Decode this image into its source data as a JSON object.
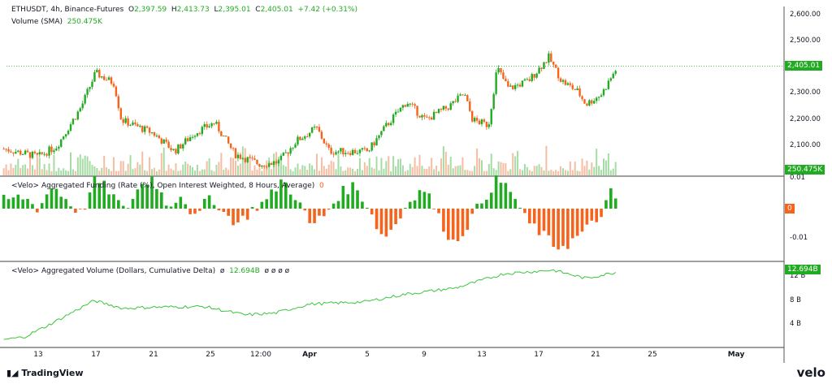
{
  "header": {
    "symbol": "ETHUSDT, 4h, Binance-Futures",
    "o_label": "O",
    "open": "2,397.59",
    "h_label": "H",
    "high": "2,413.73",
    "l_label": "L",
    "low": "2,395.01",
    "c_label": "C",
    "close": "2,405.01",
    "change": "+7.42 (+0.31%)",
    "volume_label": "Volume (SMA)",
    "volume_value": "250.475K"
  },
  "funding": {
    "title": "<Velo> Aggregated Funding (Rate (%), Open Interest Weighted, 8 Hours, Average)",
    "value": "0",
    "axis": [
      "0.01",
      "-0.01"
    ],
    "tag": "0"
  },
  "cvd": {
    "title": "<Velo> Aggregated Volume (Dollars, Cumulative Delta)",
    "pre": "ø",
    "value": "12.694B",
    "post": "ø ø ø ø",
    "axis": [
      "12 B",
      "8 B",
      "4 B"
    ],
    "tag": "12.694B"
  },
  "price_axis": [
    "2,600.00",
    "2,500.00",
    "2,300.00",
    "2,200.00",
    "2,100.00"
  ],
  "price_tag": "2,405.01",
  "volume_tag": "250.475K",
  "time_axis": [
    "13",
    "17",
    "21",
    "25",
    "12:00",
    "Apr",
    "5",
    "9",
    "13",
    "17",
    "21",
    "25",
    "May"
  ],
  "footer": {
    "brand": "TradingView",
    "logo": "velo"
  },
  "colors": {
    "up": "#22ab22",
    "down": "#f7631b",
    "line": "#3cc43c"
  },
  "chart_data": {
    "type": "candlestick",
    "x_unit": "day of March (April = 31+n)",
    "price_keypoints": [
      [
        10.6,
        2090
      ],
      [
        13,
        2060
      ],
      [
        14.3,
        2100
      ],
      [
        16,
        2250
      ],
      [
        17,
        2380
      ],
      [
        18.3,
        2340
      ],
      [
        18.8,
        2200
      ],
      [
        21,
        2150
      ],
      [
        22.5,
        2080
      ],
      [
        23.9,
        2150
      ],
      [
        25.3,
        2190
      ],
      [
        26.7,
        2070
      ],
      [
        28.5,
        2030
      ],
      [
        29.8,
        2040
      ],
      [
        31,
        2120
      ],
      [
        32.4,
        2170
      ],
      [
        33.3,
        2080
      ],
      [
        36,
        2080
      ],
      [
        37.3,
        2180
      ],
      [
        38.7,
        2270
      ],
      [
        40,
        2200
      ],
      [
        41.6,
        2250
      ],
      [
        42.7,
        2300
      ],
      [
        43.3,
        2200
      ],
      [
        44.4,
        2180
      ],
      [
        45,
        2400
      ],
      [
        45.8,
        2320
      ],
      [
        47.2,
        2350
      ],
      [
        48.6,
        2440
      ],
      [
        49.5,
        2350
      ],
      [
        50.6,
        2310
      ],
      [
        51.2,
        2260
      ],
      [
        52.3,
        2300
      ],
      [
        53.4,
        2405
      ]
    ],
    "funding_keypoints": [
      [
        10.6,
        0.003
      ],
      [
        12,
        0.004
      ],
      [
        13,
        0.0
      ],
      [
        14,
        0.008
      ],
      [
        15,
        0.003
      ],
      [
        16,
        -0.002
      ],
      [
        17,
        0.01
      ],
      [
        18,
        0.006
      ],
      [
        19,
        -0.001
      ],
      [
        20,
        0.007
      ],
      [
        21,
        0.011
      ],
      [
        22,
        0.001
      ],
      [
        23,
        0.005
      ],
      [
        24,
        -0.004
      ],
      [
        25,
        0.005
      ],
      [
        26,
        -0.002
      ],
      [
        27,
        -0.005
      ],
      [
        28,
        0.0
      ],
      [
        29,
        0.003
      ],
      [
        30,
        0.01
      ],
      [
        31,
        0.004
      ],
      [
        32,
        -0.006
      ],
      [
        33,
        -0.002
      ],
      [
        34,
        0.005
      ],
      [
        35,
        0.008
      ],
      [
        36,
        0.001
      ],
      [
        37,
        -0.01
      ],
      [
        38,
        -0.005
      ],
      [
        39,
        0.004
      ],
      [
        40,
        0.007
      ],
      [
        41,
        -0.004
      ],
      [
        42,
        -0.012
      ],
      [
        43,
        -0.005
      ],
      [
        44,
        0.003
      ],
      [
        45,
        0.01
      ],
      [
        46,
        0.006
      ],
      [
        47,
        -0.004
      ],
      [
        48,
        -0.008
      ],
      [
        49,
        -0.013
      ],
      [
        50,
        -0.012
      ],
      [
        51,
        -0.008
      ],
      [
        52,
        -0.004
      ],
      [
        53,
        0.006
      ],
      [
        53.4,
        0.0
      ]
    ],
    "cvd_keypoints": [
      [
        10.6,
        1.4
      ],
      [
        12,
        1.8
      ],
      [
        13.8,
        3.9
      ],
      [
        16.9,
        7.9
      ],
      [
        18.9,
        6.6
      ],
      [
        21,
        6.8
      ],
      [
        24.6,
        6.9
      ],
      [
        27.4,
        5.5
      ],
      [
        29.5,
        5.8
      ],
      [
        31.9,
        7.3
      ],
      [
        35.8,
        7.7
      ],
      [
        38.7,
        9
      ],
      [
        42.1,
        10
      ],
      [
        45.5,
        12.4
      ],
      [
        48.9,
        13
      ],
      [
        51.2,
        11.6
      ],
      [
        53.4,
        12.7
      ]
    ],
    "volume_range": [
      0,
      1
    ]
  }
}
